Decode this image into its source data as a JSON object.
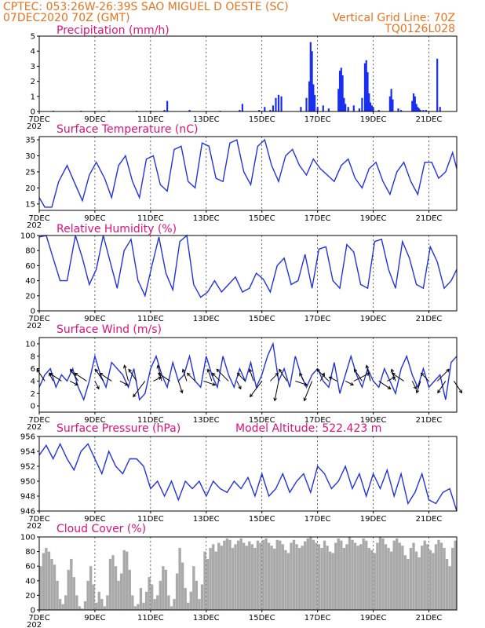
{
  "header": {
    "line1": "CPTEC:  053:26W-26:39S  SAO MIGUEL D OESTE (SC)",
    "line2_left": "07DEC2020 70Z (GMT)",
    "line2_right": "Vertical Grid Line: 70Z",
    "line3_right": "TQ0126L028"
  },
  "model_altitude_label": "Model Altitude: 522.423 m",
  "x_axis": {
    "start_day": 7,
    "end_day": 22,
    "tick_labels": [
      "7DEC",
      "9DEC",
      "11DEC",
      "13DEC",
      "15DEC",
      "17DEC",
      "19DEC",
      "21DEC"
    ],
    "tick_days": [
      7,
      9,
      11,
      13,
      15,
      17,
      19,
      21
    ],
    "corner_label": "202"
  },
  "chart_data": [
    {
      "id": "precip",
      "type": "bar",
      "title": "Precipitation (mm/h)",
      "ylim": [
        0,
        5
      ],
      "yticks": [
        0,
        1,
        2,
        3,
        4,
        5
      ],
      "x_unit": "day of Dec 2020",
      "x": [
        7.5,
        8.5,
        9.5,
        10.5,
        11.0,
        11.5,
        11.6,
        12.4,
        13.5,
        14.2,
        14.3,
        14.9,
        15.1,
        15.3,
        15.4,
        15.5,
        15.6,
        15.7,
        16.4,
        16.6,
        16.7,
        16.75,
        16.8,
        16.85,
        16.9,
        17.0,
        17.2,
        17.4,
        17.75,
        17.8,
        17.85,
        17.9,
        17.95,
        18.0,
        18.1,
        18.3,
        18.5,
        18.6,
        18.7,
        18.75,
        18.8,
        18.85,
        18.9,
        18.95,
        19.0,
        19.2,
        19.6,
        19.65,
        19.7,
        19.9,
        20.0,
        20.4,
        20.45,
        20.5,
        20.55,
        20.6,
        20.65,
        20.7,
        20.8,
        20.9,
        21.3,
        21.4
      ],
      "values": [
        0.05,
        0.05,
        0.05,
        0.05,
        0.05,
        0.1,
        0.7,
        0.1,
        0.05,
        0.1,
        0.5,
        0.1,
        0.3,
        0.1,
        0.4,
        0.9,
        1.1,
        1.0,
        0.3,
        0.9,
        2.0,
        4.6,
        4.0,
        1.8,
        1.1,
        0.3,
        0.4,
        0.2,
        1.5,
        2.7,
        2.9,
        2.4,
        0.9,
        0.5,
        0.3,
        0.4,
        0.2,
        0.9,
        3.2,
        3.4,
        2.6,
        1.2,
        0.6,
        0.4,
        0.3,
        0.1,
        1.0,
        1.5,
        0.8,
        0.2,
        0.1,
        0.7,
        1.2,
        1.0,
        0.5,
        0.3,
        0.2,
        0.1,
        0.1,
        0.1,
        3.5,
        0.3
      ]
    },
    {
      "id": "temp",
      "type": "line",
      "title": "Surface Temperature (nC)",
      "ylim": [
        13,
        36
      ],
      "yticks": [
        15,
        20,
        25,
        30,
        35
      ],
      "x_unit": "day of Dec 2020",
      "x": [
        7.0,
        7.2,
        7.45,
        7.7,
        8.0,
        8.3,
        8.55,
        8.8,
        9.05,
        9.35,
        9.6,
        9.85,
        10.1,
        10.35,
        10.6,
        10.85,
        11.1,
        11.35,
        11.6,
        11.85,
        12.1,
        12.35,
        12.6,
        12.85,
        13.1,
        13.35,
        13.6,
        13.85,
        14.1,
        14.35,
        14.6,
        14.85,
        15.1,
        15.35,
        15.6,
        15.85,
        16.1,
        16.35,
        16.6,
        16.85,
        17.1,
        17.35,
        17.6,
        17.85,
        18.1,
        18.35,
        18.6,
        18.85,
        19.1,
        19.35,
        19.6,
        19.85,
        20.1,
        20.35,
        20.6,
        20.85,
        21.1,
        21.35,
        21.6,
        21.85,
        22.0
      ],
      "values": [
        17,
        14,
        14,
        22,
        27,
        21,
        16,
        24,
        28,
        23,
        17,
        27,
        30,
        22,
        17,
        29,
        30,
        21,
        19,
        32,
        33,
        22,
        20,
        34,
        33,
        23,
        22,
        34,
        35,
        25,
        21,
        33,
        35,
        27,
        22,
        30,
        32,
        27,
        24,
        29,
        26,
        24,
        22,
        27,
        29,
        23,
        20,
        26,
        28,
        22,
        18,
        25,
        28,
        22,
        18,
        28,
        28,
        23,
        25,
        31,
        26
      ]
    },
    {
      "id": "rh",
      "type": "line",
      "title": "Relative Humidity (%)",
      "ylim": [
        0,
        100
      ],
      "yticks": [
        0,
        20,
        40,
        60,
        80,
        100
      ],
      "x_unit": "day of Dec 2020",
      "x": [
        7.0,
        7.25,
        7.5,
        7.75,
        8.0,
        8.3,
        8.55,
        8.8,
        9.05,
        9.3,
        9.55,
        9.8,
        10.05,
        10.3,
        10.55,
        10.8,
        11.05,
        11.3,
        11.55,
        11.8,
        12.05,
        12.3,
        12.55,
        12.8,
        13.05,
        13.3,
        13.55,
        13.8,
        14.05,
        14.3,
        14.55,
        14.8,
        15.05,
        15.3,
        15.55,
        15.8,
        16.05,
        16.3,
        16.55,
        16.8,
        17.05,
        17.3,
        17.55,
        17.8,
        18.05,
        18.3,
        18.55,
        18.8,
        19.05,
        19.3,
        19.55,
        19.8,
        20.05,
        20.3,
        20.55,
        20.8,
        21.05,
        21.3,
        21.55,
        21.8,
        22.0
      ],
      "values": [
        98,
        100,
        70,
        40,
        40,
        100,
        70,
        35,
        55,
        100,
        65,
        30,
        80,
        95,
        40,
        20,
        60,
        98,
        50,
        28,
        92,
        100,
        35,
        18,
        25,
        40,
        25,
        35,
        45,
        25,
        30,
        50,
        42,
        25,
        60,
        70,
        35,
        40,
        75,
        30,
        82,
        85,
        40,
        30,
        88,
        78,
        35,
        30,
        92,
        95,
        55,
        30,
        92,
        70,
        35,
        30,
        85,
        65,
        30,
        40,
        55
      ]
    },
    {
      "id": "wind",
      "type": "line",
      "title": "Surface Wind (m/s)",
      "ylim": [
        -1,
        11
      ],
      "yticks": [
        0,
        2,
        4,
        6,
        8,
        10
      ],
      "x_unit": "day of Dec 2020",
      "x": [
        7.0,
        7.2,
        7.4,
        7.6,
        7.8,
        8.0,
        8.2,
        8.4,
        8.6,
        8.8,
        9.0,
        9.2,
        9.4,
        9.6,
        9.8,
        10.0,
        10.2,
        10.4,
        10.6,
        10.8,
        11.0,
        11.2,
        11.4,
        11.6,
        11.8,
        12.0,
        12.2,
        12.4,
        12.6,
        12.8,
        13.0,
        13.2,
        13.4,
        13.6,
        13.8,
        14.0,
        14.2,
        14.4,
        14.6,
        14.8,
        15.0,
        15.2,
        15.4,
        15.6,
        15.8,
        16.0,
        16.2,
        16.4,
        16.6,
        16.8,
        17.0,
        17.2,
        17.4,
        17.6,
        17.8,
        18.0,
        18.2,
        18.4,
        18.6,
        18.8,
        19.0,
        19.2,
        19.4,
        19.6,
        19.8,
        20.0,
        20.2,
        20.4,
        20.6,
        20.8,
        21.0,
        21.2,
        21.4,
        21.6,
        21.8,
        22.0
      ],
      "values": [
        3,
        5,
        6,
        3,
        5,
        4,
        6,
        3,
        1,
        4,
        8,
        5,
        3,
        7,
        6,
        5,
        3,
        6,
        1,
        2,
        6,
        8,
        5,
        3,
        7,
        4,
        5,
        8,
        4,
        3,
        8,
        5,
        3,
        8,
        5,
        3,
        6,
        4,
        7,
        3,
        5,
        8,
        10,
        4,
        6,
        3,
        8,
        5,
        3,
        5,
        6,
        4,
        3,
        7,
        2,
        5,
        8,
        5,
        3,
        6,
        4,
        3,
        6,
        4,
        2,
        6,
        8,
        5,
        3,
        6,
        3,
        4,
        5,
        1,
        7,
        8
      ]
    },
    {
      "id": "pres",
      "type": "line",
      "title": "Surface Pressure (hPa)",
      "ylim": [
        946,
        956
      ],
      "yticks": [
        946,
        948,
        950,
        952,
        954,
        956
      ],
      "x_unit": "day of Dec 2020",
      "x": [
        7.0,
        7.25,
        7.5,
        7.75,
        8.0,
        8.25,
        8.5,
        8.75,
        9.0,
        9.25,
        9.5,
        9.75,
        10.0,
        10.25,
        10.5,
        10.75,
        11.0,
        11.25,
        11.5,
        11.75,
        12.0,
        12.25,
        12.5,
        12.75,
        13.0,
        13.25,
        13.5,
        13.75,
        14.0,
        14.25,
        14.5,
        14.75,
        15.0,
        15.25,
        15.5,
        15.75,
        16.0,
        16.25,
        16.5,
        16.75,
        17.0,
        17.25,
        17.5,
        17.75,
        18.0,
        18.25,
        18.5,
        18.75,
        19.0,
        19.25,
        19.5,
        19.75,
        20.0,
        20.25,
        20.5,
        20.75,
        21.0,
        21.25,
        21.5,
        21.75,
        22.0
      ],
      "values": [
        953.5,
        954.8,
        953,
        955,
        953,
        951.5,
        954,
        955,
        953,
        951,
        954,
        952,
        951,
        953,
        953,
        952,
        949,
        950,
        948,
        950,
        947.5,
        950,
        949,
        950,
        948,
        950,
        949,
        948.5,
        950,
        949,
        950.5,
        948,
        951,
        948,
        949,
        951,
        948.5,
        950,
        951,
        948.5,
        952,
        951,
        949,
        950,
        952,
        949,
        951,
        948,
        951,
        949,
        951.5,
        948,
        951,
        947,
        948.5,
        951,
        947.5,
        947,
        948.5,
        949,
        946
      ]
    },
    {
      "id": "cloud",
      "type": "bar",
      "title": "Cloud Cover (%)",
      "ylim": [
        0,
        100
      ],
      "yticks": [
        0,
        20,
        40,
        60,
        80,
        100
      ],
      "x_unit": "day of Dec 2020",
      "x": [
        7.05,
        7.15,
        7.25,
        7.35,
        7.45,
        7.55,
        7.65,
        7.75,
        7.85,
        7.95,
        8.05,
        8.15,
        8.25,
        8.35,
        8.45,
        8.55,
        8.65,
        8.75,
        8.85,
        8.95,
        9.05,
        9.15,
        9.25,
        9.35,
        9.45,
        9.55,
        9.65,
        9.75,
        9.85,
        9.95,
        10.05,
        10.15,
        10.25,
        10.35,
        10.45,
        10.55,
        10.65,
        10.75,
        10.85,
        10.95,
        11.05,
        11.15,
        11.25,
        11.35,
        11.45,
        11.55,
        11.65,
        11.75,
        11.85,
        11.95,
        12.05,
        12.15,
        12.25,
        12.35,
        12.45,
        12.55,
        12.65,
        12.75,
        12.85,
        12.95,
        13.05,
        13.15,
        13.25,
        13.35,
        13.45,
        13.55,
        13.65,
        13.75,
        13.85,
        13.95,
        14.05,
        14.15,
        14.25,
        14.35,
        14.45,
        14.55,
        14.65,
        14.75,
        14.85,
        14.95,
        15.05,
        15.15,
        15.25,
        15.35,
        15.45,
        15.55,
        15.65,
        15.75,
        15.85,
        15.95,
        16.05,
        16.15,
        16.25,
        16.35,
        16.45,
        16.55,
        16.65,
        16.75,
        16.85,
        16.95,
        17.05,
        17.15,
        17.25,
        17.35,
        17.45,
        17.55,
        17.65,
        17.75,
        17.85,
        17.95,
        18.05,
        18.15,
        18.25,
        18.35,
        18.45,
        18.55,
        18.65,
        18.75,
        18.85,
        18.95,
        19.05,
        19.15,
        19.25,
        19.35,
        19.45,
        19.55,
        19.65,
        19.75,
        19.85,
        19.95,
        20.05,
        20.15,
        20.25,
        20.35,
        20.45,
        20.55,
        20.65,
        20.75,
        20.85,
        20.95,
        21.05,
        21.15,
        21.25,
        21.35,
        21.45,
        21.55,
        21.65,
        21.75,
        21.85,
        21.95
      ],
      "values": [
        60,
        78,
        85,
        80,
        70,
        62,
        40,
        15,
        8,
        20,
        55,
        70,
        45,
        20,
        5,
        2,
        12,
        40,
        60,
        35,
        10,
        25,
        15,
        5,
        20,
        70,
        75,
        60,
        40,
        50,
        82,
        80,
        55,
        20,
        5,
        8,
        30,
        10,
        25,
        45,
        35,
        15,
        20,
        40,
        60,
        55,
        20,
        5,
        15,
        50,
        85,
        65,
        30,
        10,
        25,
        60,
        40,
        15,
        35,
        80,
        70,
        85,
        90,
        80,
        92,
        88,
        95,
        98,
        96,
        85,
        90,
        95,
        98,
        92,
        88,
        94,
        90,
        85,
        95,
        92,
        96,
        98,
        92,
        88,
        84,
        96,
        95,
        90,
        82,
        78,
        92,
        96,
        90,
        85,
        88,
        94,
        98,
        100,
        96,
        92,
        90,
        85,
        95,
        88,
        80,
        78,
        92,
        98,
        95,
        85,
        90,
        100,
        96,
        92,
        88,
        90,
        98,
        95,
        85,
        82,
        78,
        92,
        100,
        98,
        90,
        85,
        80,
        95,
        98,
        92,
        88,
        75,
        70,
        85,
        92,
        80,
        72,
        88,
        95,
        90,
        82,
        78,
        90,
        96,
        92,
        85,
        70,
        60,
        85,
        95
      ]
    }
  ],
  "wind_arrows": {
    "x": [
      7.2,
      7.5,
      7.8,
      8.1,
      8.4,
      8.7,
      9.0,
      9.3,
      9.6,
      9.9,
      10.2,
      10.5,
      10.8,
      11.1,
      11.4,
      11.7,
      12.0,
      12.3,
      12.6,
      12.9,
      13.2,
      13.5,
      13.8,
      14.1,
      14.4,
      14.7,
      15.0,
      15.3,
      15.6,
      15.9,
      16.2,
      16.5,
      16.8,
      17.1,
      17.4,
      17.7,
      18.0,
      18.3,
      18.6,
      18.9,
      19.2,
      19.5,
      19.8,
      20.1,
      20.4,
      20.7,
      21.0,
      21.3,
      21.6,
      21.9
    ],
    "u": [
      -2,
      -1,
      -3,
      2,
      -2,
      -3,
      1,
      -2,
      -3,
      2,
      -1,
      -2,
      -3,
      2,
      -1,
      -3,
      1,
      -1,
      -2,
      3,
      -1,
      -2,
      -3,
      1,
      -2,
      -1,
      -3,
      2,
      -1,
      -2,
      3,
      -1,
      -2,
      1,
      -3,
      -2,
      2,
      4,
      -2,
      -1,
      3,
      2,
      -1,
      -3,
      1,
      -1,
      -2,
      3,
      -2,
      2
    ],
    "v": [
      3,
      2,
      2,
      -1,
      3,
      2,
      -2,
      3,
      2,
      -1,
      4,
      3,
      -4,
      1,
      4,
      2,
      -3,
      3,
      2,
      -1,
      3,
      2,
      3,
      -2,
      2,
      3,
      -4,
      2,
      -5,
      3,
      -1,
      2,
      -5,
      2,
      3,
      1,
      -1,
      2,
      3,
      4,
      -2,
      1,
      3,
      2,
      -2,
      -3,
      2,
      3,
      -3,
      -3
    ]
  }
}
